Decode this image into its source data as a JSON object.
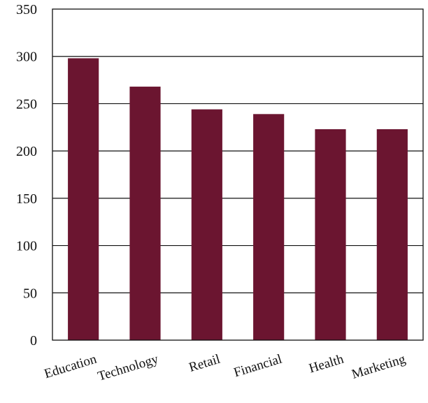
{
  "chart_data": {
    "type": "bar",
    "categories": [
      "Education",
      "Technology",
      "Retail",
      "Financial",
      "Health",
      "Marketing"
    ],
    "values": [
      298,
      268,
      244,
      239,
      223,
      223
    ],
    "ylim": [
      0,
      350
    ],
    "yticks": [
      0,
      50,
      100,
      150,
      200,
      250,
      300,
      350
    ],
    "title": "",
    "xlabel": "",
    "ylabel": "",
    "grid": true,
    "bar_color": "#6b1530",
    "grid_color": "#111111"
  }
}
